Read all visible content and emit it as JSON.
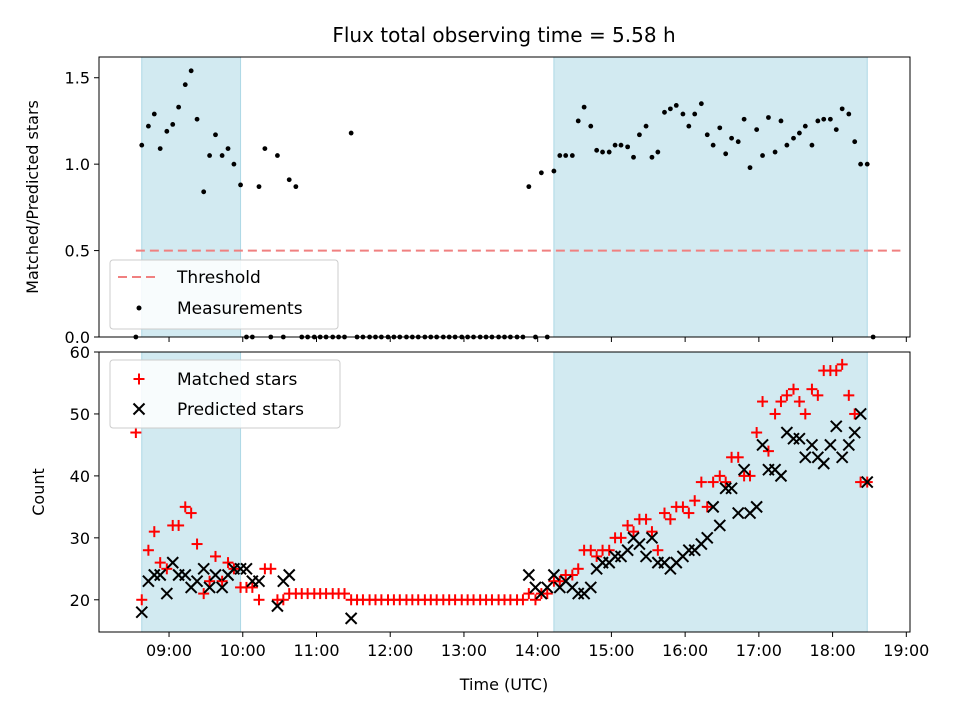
{
  "chart_data": {
    "type": "scatter",
    "title": "Flux total observing time = 5.58 h",
    "shade_color": "#add8e6",
    "intervals": [
      {
        "start": 8.63,
        "end": 9.97
      },
      {
        "start": 14.22,
        "end": 18.47
      }
    ],
    "x_ticks": [
      "09:00",
      "10:00",
      "11:00",
      "12:00",
      "13:00",
      "14:00",
      "15:00",
      "16:00",
      "17:00",
      "18:00",
      "19:00"
    ],
    "xlabel": "Time (UTC)",
    "xlim_hours": [
      8.05,
      19.05
    ],
    "top": {
      "ylabel": "Matched/Predicted stars",
      "ylim": [
        0,
        1.62
      ],
      "y_ticks": [
        "0.0",
        "0.5",
        "1.0",
        "1.5"
      ],
      "threshold": {
        "label": "Threshold",
        "value": 0.5,
        "x_start": 8.55,
        "x_end": 18.92,
        "color": "#f08080"
      },
      "measurements_label": "Measurements",
      "measurement_color": "#000000",
      "measurements": [
        [
          8.55,
          0.0
        ],
        [
          8.63,
          1.11
        ],
        [
          8.72,
          1.22
        ],
        [
          8.8,
          1.29
        ],
        [
          8.88,
          1.09
        ],
        [
          8.97,
          1.19
        ],
        [
          9.05,
          1.23
        ],
        [
          9.13,
          1.33
        ],
        [
          9.22,
          1.46
        ],
        [
          9.3,
          1.54
        ],
        [
          9.38,
          1.26
        ],
        [
          9.47,
          0.84
        ],
        [
          9.55,
          1.05
        ],
        [
          9.63,
          1.17
        ],
        [
          9.72,
          1.05
        ],
        [
          9.8,
          1.09
        ],
        [
          9.88,
          1.0
        ],
        [
          9.97,
          0.88
        ],
        [
          10.05,
          0.0
        ],
        [
          10.13,
          0.0
        ],
        [
          10.22,
          0.87
        ],
        [
          10.3,
          1.09
        ],
        [
          10.38,
          0.0
        ],
        [
          10.47,
          1.05
        ],
        [
          10.55,
          0.0
        ],
        [
          10.63,
          0.91
        ],
        [
          10.72,
          0.87
        ],
        [
          10.8,
          0.0
        ],
        [
          10.88,
          0.0
        ],
        [
          10.97,
          0.0
        ],
        [
          11.05,
          0.0
        ],
        [
          11.13,
          0.0
        ],
        [
          11.22,
          0.0
        ],
        [
          11.3,
          0.0
        ],
        [
          11.38,
          0.0
        ],
        [
          11.47,
          1.18
        ],
        [
          11.55,
          0.0
        ],
        [
          11.63,
          0.0
        ],
        [
          11.72,
          0.0
        ],
        [
          11.8,
          0.0
        ],
        [
          11.88,
          0.0
        ],
        [
          11.97,
          0.0
        ],
        [
          12.05,
          0.0
        ],
        [
          12.13,
          0.0
        ],
        [
          12.22,
          0.0
        ],
        [
          12.3,
          0.0
        ],
        [
          12.38,
          0.0
        ],
        [
          12.47,
          0.0
        ],
        [
          12.55,
          0.0
        ],
        [
          12.63,
          0.0
        ],
        [
          12.72,
          0.0
        ],
        [
          12.8,
          0.0
        ],
        [
          12.88,
          0.0
        ],
        [
          12.97,
          0.0
        ],
        [
          13.05,
          0.0
        ],
        [
          13.13,
          0.0
        ],
        [
          13.22,
          0.0
        ],
        [
          13.3,
          0.0
        ],
        [
          13.38,
          0.0
        ],
        [
          13.47,
          0.0
        ],
        [
          13.55,
          0.0
        ],
        [
          13.63,
          0.0
        ],
        [
          13.72,
          0.0
        ],
        [
          13.8,
          0.0
        ],
        [
          13.88,
          0.87
        ],
        [
          13.97,
          0.0
        ],
        [
          14.05,
          0.95
        ],
        [
          14.13,
          0.0
        ],
        [
          14.22,
          0.96
        ],
        [
          14.3,
          1.05
        ],
        [
          14.38,
          1.05
        ],
        [
          14.47,
          1.05
        ],
        [
          14.55,
          1.25
        ],
        [
          14.63,
          1.33
        ],
        [
          14.72,
          1.22
        ],
        [
          14.8,
          1.08
        ],
        [
          14.88,
          1.07
        ],
        [
          14.97,
          1.07
        ],
        [
          15.05,
          1.11
        ],
        [
          15.13,
          1.11
        ],
        [
          15.22,
          1.1
        ],
        [
          15.3,
          1.04
        ],
        [
          15.38,
          1.17
        ],
        [
          15.47,
          1.22
        ],
        [
          15.55,
          1.04
        ],
        [
          15.63,
          1.07
        ],
        [
          15.72,
          1.3
        ],
        [
          15.8,
          1.32
        ],
        [
          15.88,
          1.34
        ],
        [
          15.97,
          1.29
        ],
        [
          16.05,
          1.22
        ],
        [
          16.13,
          1.29
        ],
        [
          16.22,
          1.35
        ],
        [
          16.3,
          1.17
        ],
        [
          16.38,
          1.11
        ],
        [
          16.47,
          1.21
        ],
        [
          16.55,
          1.06
        ],
        [
          16.63,
          1.15
        ],
        [
          16.72,
          1.13
        ],
        [
          16.8,
          1.26
        ],
        [
          16.88,
          0.98
        ],
        [
          16.97,
          1.2
        ],
        [
          17.05,
          1.05
        ],
        [
          17.13,
          1.27
        ],
        [
          17.22,
          1.07
        ],
        [
          17.3,
          1.25
        ],
        [
          17.38,
          1.11
        ],
        [
          17.47,
          1.15
        ],
        [
          17.55,
          1.18
        ],
        [
          17.63,
          1.22
        ],
        [
          17.72,
          1.11
        ],
        [
          17.8,
          1.25
        ],
        [
          17.88,
          1.26
        ],
        [
          17.97,
          1.26
        ],
        [
          18.05,
          1.2
        ],
        [
          18.13,
          1.32
        ],
        [
          18.22,
          1.29
        ],
        [
          18.3,
          1.13
        ],
        [
          18.38,
          1.0
        ],
        [
          18.47,
          1.0
        ],
        [
          18.55,
          0.0
        ]
      ]
    },
    "bottom": {
      "ylabel": "Count",
      "ylim": [
        14.8,
        60
      ],
      "y_ticks": [
        "20",
        "30",
        "40",
        "50",
        "60"
      ],
      "matched": {
        "label": "Matched stars",
        "color": "#ff0000",
        "values": [
          [
            8.55,
            47
          ],
          [
            8.63,
            20
          ],
          [
            8.72,
            28
          ],
          [
            8.8,
            31
          ],
          [
            8.88,
            26
          ],
          [
            8.97,
            25
          ],
          [
            9.05,
            32
          ],
          [
            9.13,
            32
          ],
          [
            9.22,
            35
          ],
          [
            9.3,
            34
          ],
          [
            9.38,
            29
          ],
          [
            9.47,
            21
          ],
          [
            9.55,
            23
          ],
          [
            9.63,
            27
          ],
          [
            9.72,
            23
          ],
          [
            9.8,
            26
          ],
          [
            9.88,
            25
          ],
          [
            9.97,
            22
          ],
          [
            10.05,
            22
          ],
          [
            10.13,
            22
          ],
          [
            10.22,
            20
          ],
          [
            10.3,
            25
          ],
          [
            10.38,
            25
          ],
          [
            10.47,
            20
          ],
          [
            10.55,
            20
          ],
          [
            10.63,
            21
          ],
          [
            10.72,
            21
          ],
          [
            10.8,
            21
          ],
          [
            10.88,
            21
          ],
          [
            10.97,
            21
          ],
          [
            11.05,
            21
          ],
          [
            11.13,
            21
          ],
          [
            11.22,
            21
          ],
          [
            11.3,
            21
          ],
          [
            11.38,
            21
          ],
          [
            11.47,
            20
          ],
          [
            11.55,
            20
          ],
          [
            11.63,
            20
          ],
          [
            11.72,
            20
          ],
          [
            11.8,
            20
          ],
          [
            11.88,
            20
          ],
          [
            11.97,
            20
          ],
          [
            12.05,
            20
          ],
          [
            12.13,
            20
          ],
          [
            12.22,
            20
          ],
          [
            12.3,
            20
          ],
          [
            12.38,
            20
          ],
          [
            12.47,
            20
          ],
          [
            12.55,
            20
          ],
          [
            12.63,
            20
          ],
          [
            12.72,
            20
          ],
          [
            12.8,
            20
          ],
          [
            12.88,
            20
          ],
          [
            12.97,
            20
          ],
          [
            13.05,
            20
          ],
          [
            13.13,
            20
          ],
          [
            13.22,
            20
          ],
          [
            13.3,
            20
          ],
          [
            13.38,
            20
          ],
          [
            13.47,
            20
          ],
          [
            13.55,
            20
          ],
          [
            13.63,
            20
          ],
          [
            13.72,
            20
          ],
          [
            13.8,
            20
          ],
          [
            13.88,
            21
          ],
          [
            13.97,
            20
          ],
          [
            14.05,
            21
          ],
          [
            14.13,
            21
          ],
          [
            14.22,
            23
          ],
          [
            14.3,
            23
          ],
          [
            14.38,
            24
          ],
          [
            14.47,
            24
          ],
          [
            14.55,
            25
          ],
          [
            14.63,
            28
          ],
          [
            14.72,
            28
          ],
          [
            14.8,
            27
          ],
          [
            14.88,
            28
          ],
          [
            14.97,
            28
          ],
          [
            15.05,
            30
          ],
          [
            15.13,
            30
          ],
          [
            15.22,
            32
          ],
          [
            15.3,
            31
          ],
          [
            15.38,
            33
          ],
          [
            15.47,
            33
          ],
          [
            15.55,
            31
          ],
          [
            15.63,
            28
          ],
          [
            15.72,
            34
          ],
          [
            15.8,
            33
          ],
          [
            15.88,
            35
          ],
          [
            15.97,
            35
          ],
          [
            16.05,
            34
          ],
          [
            16.13,
            36
          ],
          [
            16.22,
            39
          ],
          [
            16.3,
            35
          ],
          [
            16.38,
            39
          ],
          [
            16.47,
            40
          ],
          [
            16.55,
            39
          ],
          [
            16.63,
            43
          ],
          [
            16.72,
            43
          ],
          [
            16.8,
            40
          ],
          [
            16.88,
            40
          ],
          [
            16.97,
            47
          ],
          [
            17.05,
            52
          ],
          [
            17.13,
            44
          ],
          [
            17.22,
            50
          ],
          [
            17.3,
            52
          ],
          [
            17.38,
            53
          ],
          [
            17.47,
            54
          ],
          [
            17.55,
            52
          ],
          [
            17.63,
            50
          ],
          [
            17.72,
            54
          ],
          [
            17.8,
            53
          ],
          [
            17.88,
            57
          ],
          [
            17.97,
            57
          ],
          [
            18.05,
            57
          ],
          [
            18.13,
            58
          ],
          [
            18.22,
            53
          ],
          [
            18.3,
            50
          ],
          [
            18.38,
            39
          ],
          [
            18.47,
            39
          ]
        ]
      },
      "predicted": {
        "label": "Predicted stars",
        "color": "#000000",
        "values": [
          [
            8.63,
            18
          ],
          [
            8.72,
            23
          ],
          [
            8.8,
            24
          ],
          [
            8.88,
            24
          ],
          [
            8.97,
            21
          ],
          [
            9.05,
            26
          ],
          [
            9.13,
            24
          ],
          [
            9.22,
            24
          ],
          [
            9.3,
            22
          ],
          [
            9.38,
            23
          ],
          [
            9.47,
            25
          ],
          [
            9.55,
            22
          ],
          [
            9.63,
            24
          ],
          [
            9.72,
            22
          ],
          [
            9.8,
            24
          ],
          [
            9.88,
            25
          ],
          [
            9.97,
            25
          ],
          [
            10.05,
            25
          ],
          [
            10.13,
            23
          ],
          [
            10.22,
            23
          ],
          [
            10.47,
            19
          ],
          [
            10.55,
            23
          ],
          [
            10.63,
            24
          ],
          [
            11.47,
            17
          ],
          [
            13.88,
            24
          ],
          [
            13.97,
            22
          ],
          [
            14.05,
            21
          ],
          [
            14.13,
            22
          ],
          [
            14.22,
            24
          ],
          [
            14.3,
            22
          ],
          [
            14.38,
            23
          ],
          [
            14.47,
            22
          ],
          [
            14.55,
            21
          ],
          [
            14.63,
            21
          ],
          [
            14.72,
            22
          ],
          [
            14.8,
            25
          ],
          [
            14.88,
            26
          ],
          [
            14.97,
            26
          ],
          [
            15.05,
            27
          ],
          [
            15.13,
            27
          ],
          [
            15.22,
            28
          ],
          [
            15.3,
            30
          ],
          [
            15.38,
            29
          ],
          [
            15.47,
            27
          ],
          [
            15.55,
            30
          ],
          [
            15.63,
            26
          ],
          [
            15.72,
            26
          ],
          [
            15.8,
            25
          ],
          [
            15.88,
            26
          ],
          [
            15.97,
            27
          ],
          [
            16.05,
            28
          ],
          [
            16.13,
            28
          ],
          [
            16.22,
            29
          ],
          [
            16.3,
            30
          ],
          [
            16.38,
            35
          ],
          [
            16.47,
            32
          ],
          [
            16.55,
            38
          ],
          [
            16.63,
            38
          ],
          [
            16.72,
            34
          ],
          [
            16.8,
            41
          ],
          [
            16.88,
            34
          ],
          [
            16.97,
            35
          ],
          [
            17.05,
            45
          ],
          [
            17.13,
            41
          ],
          [
            17.22,
            41
          ],
          [
            17.3,
            40
          ],
          [
            17.38,
            47
          ],
          [
            17.47,
            46
          ],
          [
            17.55,
            46
          ],
          [
            17.63,
            43
          ],
          [
            17.72,
            45
          ],
          [
            17.8,
            43
          ],
          [
            17.88,
            42
          ],
          [
            17.97,
            45
          ],
          [
            18.05,
            48
          ],
          [
            18.13,
            43
          ],
          [
            18.22,
            45
          ],
          [
            18.3,
            47
          ],
          [
            18.38,
            50
          ],
          [
            18.47,
            39
          ]
        ]
      }
    }
  }
}
